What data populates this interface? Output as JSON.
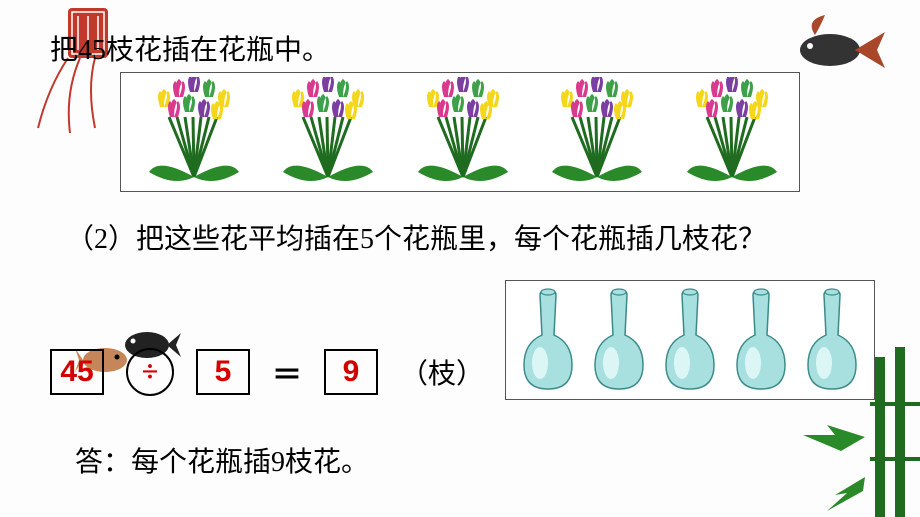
{
  "corner_seal": {
    "color": "#c0392b",
    "size": 90
  },
  "title_line": "把45枝花插在花瓶中。",
  "flower_bunches": {
    "count": 5,
    "petal_colors": [
      "#f4d61a",
      "#d83b8d",
      "#7a3fa0",
      "#3fa04a"
    ],
    "stem_color": "#1f6b1f",
    "leaf_color": "#2a8a2a"
  },
  "question_text": "（2）把这些花平均插在5个花瓶里，每个花瓶插几枝花？",
  "vases": {
    "count": 5,
    "body_color": "#a8e0e0",
    "highlight_color": "#e8fbfb",
    "outline_color": "#3a8a8a"
  },
  "equation": {
    "a": "45",
    "op": "÷",
    "b": "5",
    "eq": "＝",
    "result": "9",
    "unit": "（枝）",
    "num_color": "#d40000",
    "box_border": "#000000"
  },
  "answer_text": "答：每个花瓶插9枝花。",
  "fish_decor": {
    "top_right": {
      "body": "#333333",
      "fin": "#a8472a"
    },
    "bottom_pair": {
      "left_body": "#c5875a",
      "right_body": "#222222"
    }
  }
}
